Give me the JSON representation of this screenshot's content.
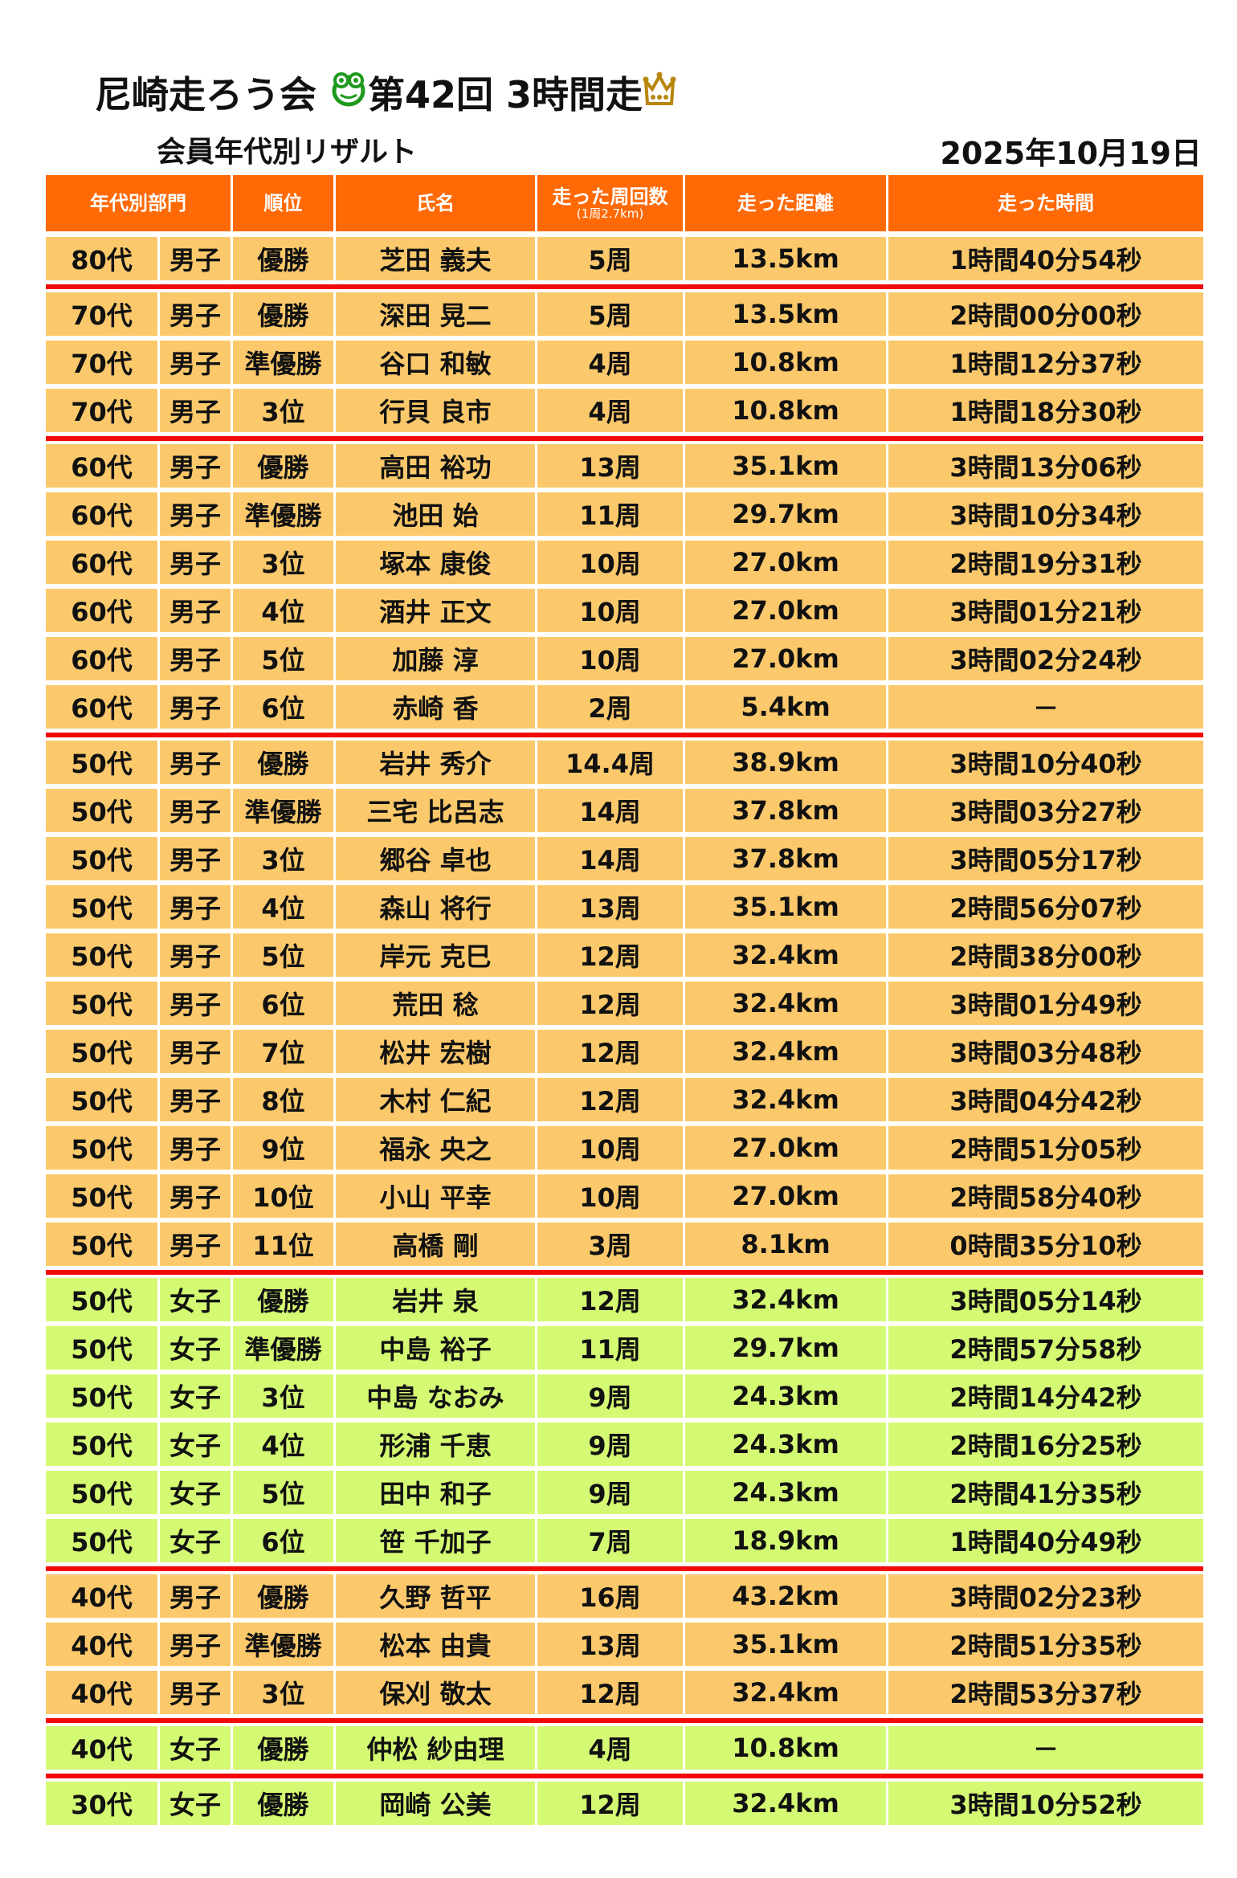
{
  "header": {
    "club": "尼崎走ろう会",
    "event": "第42回 3時間走",
    "subtitle": "会員年代別リザルト",
    "date": "2025年10月19日",
    "frog_icon": "frog-icon",
    "crown_icon": "crown-icon"
  },
  "colors": {
    "header_bg": "#FF6A06",
    "male_row": "#FBC96B",
    "female_row": "#D4F972",
    "group_divider": "#F20A0A"
  },
  "columns": [
    "年代別部門",
    "順位",
    "氏名",
    "走った周回数",
    "走った距離",
    "走った時間"
  ],
  "lap_note": "(1周2.7km)",
  "groups": [
    {
      "gender": "m",
      "rows": [
        [
          "80代",
          "男子",
          "優勝",
          "芝田 義夫",
          "5周",
          "13.5km",
          "1時間40分54秒"
        ]
      ]
    },
    {
      "gender": "m",
      "rows": [
        [
          "70代",
          "男子",
          "優勝",
          "深田 晃二",
          "5周",
          "13.5km",
          "2時間00分00秒"
        ],
        [
          "70代",
          "男子",
          "準優勝",
          "谷口 和敏",
          "4周",
          "10.8km",
          "1時間12分37秒"
        ],
        [
          "70代",
          "男子",
          "3位",
          "行貝 良市",
          "4周",
          "10.8km",
          "1時間18分30秒"
        ]
      ]
    },
    {
      "gender": "m",
      "rows": [
        [
          "60代",
          "男子",
          "優勝",
          "高田 裕功",
          "13周",
          "35.1km",
          "3時間13分06秒"
        ],
        [
          "60代",
          "男子",
          "準優勝",
          "池田 始",
          "11周",
          "29.7km",
          "3時間10分34秒"
        ],
        [
          "60代",
          "男子",
          "3位",
          "塚本 康俊",
          "10周",
          "27.0km",
          "2時間19分31秒"
        ],
        [
          "60代",
          "男子",
          "4位",
          "酒井 正文",
          "10周",
          "27.0km",
          "3時間01分21秒"
        ],
        [
          "60代",
          "男子",
          "5位",
          "加藤 淳",
          "10周",
          "27.0km",
          "3時間02分24秒"
        ],
        [
          "60代",
          "男子",
          "6位",
          "赤崎 香",
          "2周",
          "5.4km",
          "－"
        ]
      ]
    },
    {
      "gender": "m",
      "rows": [
        [
          "50代",
          "男子",
          "優勝",
          "岩井 秀介",
          "14.4周",
          "38.9km",
          "3時間10分40秒"
        ],
        [
          "50代",
          "男子",
          "準優勝",
          "三宅 比呂志",
          "14周",
          "37.8km",
          "3時間03分27秒"
        ],
        [
          "50代",
          "男子",
          "3位",
          "郷谷 卓也",
          "14周",
          "37.8km",
          "3時間05分17秒"
        ],
        [
          "50代",
          "男子",
          "4位",
          "森山 将行",
          "13周",
          "35.1km",
          "2時間56分07秒"
        ],
        [
          "50代",
          "男子",
          "5位",
          "岸元 克巳",
          "12周",
          "32.4km",
          "2時間38分00秒"
        ],
        [
          "50代",
          "男子",
          "6位",
          "荒田 稔",
          "12周",
          "32.4km",
          "3時間01分49秒"
        ],
        [
          "50代",
          "男子",
          "7位",
          "松井 宏樹",
          "12周",
          "32.4km",
          "3時間03分48秒"
        ],
        [
          "50代",
          "男子",
          "8位",
          "木村 仁紀",
          "12周",
          "32.4km",
          "3時間04分42秒"
        ],
        [
          "50代",
          "男子",
          "9位",
          "福永 央之",
          "10周",
          "27.0km",
          "2時間51分05秒"
        ],
        [
          "50代",
          "男子",
          "10位",
          "小山 平幸",
          "10周",
          "27.0km",
          "2時間58分40秒"
        ],
        [
          "50代",
          "男子",
          "11位",
          "高橋 剛",
          "3周",
          "8.1km",
          "0時間35分10秒"
        ]
      ]
    },
    {
      "gender": "f",
      "rows": [
        [
          "50代",
          "女子",
          "優勝",
          "岩井 泉",
          "12周",
          "32.4km",
          "3時間05分14秒"
        ],
        [
          "50代",
          "女子",
          "準優勝",
          "中島 裕子",
          "11周",
          "29.7km",
          "2時間57分58秒"
        ],
        [
          "50代",
          "女子",
          "3位",
          "中島 なおみ",
          "9周",
          "24.3km",
          "2時間14分42秒"
        ],
        [
          "50代",
          "女子",
          "4位",
          "形浦 千恵",
          "9周",
          "24.3km",
          "2時間16分25秒"
        ],
        [
          "50代",
          "女子",
          "5位",
          "田中 和子",
          "9周",
          "24.3km",
          "2時間41分35秒"
        ],
        [
          "50代",
          "女子",
          "6位",
          "笹 千加子",
          "7周",
          "18.9km",
          "1時間40分49秒"
        ]
      ]
    },
    {
      "gender": "m",
      "rows": [
        [
          "40代",
          "男子",
          "優勝",
          "久野 哲平",
          "16周",
          "43.2km",
          "3時間02分23秒"
        ],
        [
          "40代",
          "男子",
          "準優勝",
          "松本 由貴",
          "13周",
          "35.1km",
          "2時間51分35秒"
        ],
        [
          "40代",
          "男子",
          "3位",
          "保刈 敬太",
          "12周",
          "32.4km",
          "2時間53分37秒"
        ]
      ]
    },
    {
      "gender": "f",
      "rows": [
        [
          "40代",
          "女子",
          "優勝",
          "仲松 紗由理",
          "4周",
          "10.8km",
          "－"
        ]
      ]
    },
    {
      "gender": "f",
      "rows": [
        [
          "30代",
          "女子",
          "優勝",
          "岡崎 公美",
          "12周",
          "32.4km",
          "3時間10分52秒"
        ]
      ]
    }
  ]
}
